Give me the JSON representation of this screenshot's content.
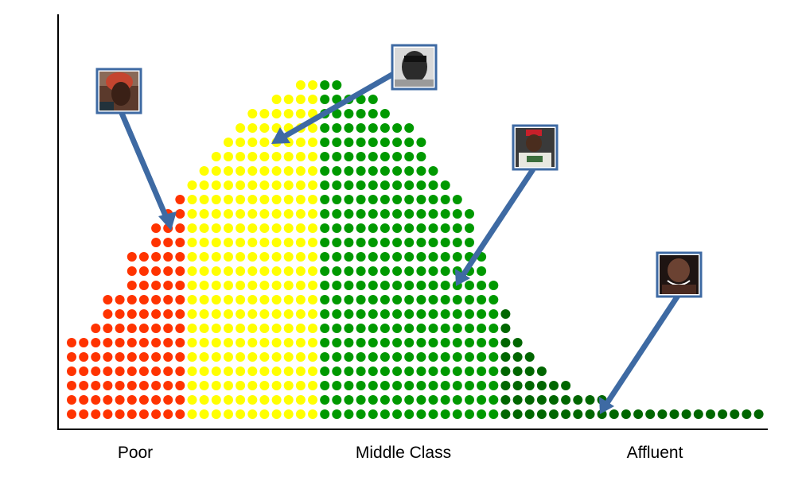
{
  "chart_data": {
    "type": "dot-histogram",
    "title": "",
    "xlabel": "",
    "ylabel": "",
    "categories": [
      "Poor",
      "Middle Class",
      "Affluent"
    ],
    "column_heights": [
      6,
      6,
      7,
      9,
      9,
      12,
      12,
      14,
      15,
      16,
      17,
      18,
      19,
      20,
      21,
      22,
      22,
      23,
      23,
      24,
      24,
      24,
      24,
      23,
      23,
      23,
      22,
      21,
      21,
      20,
      18,
      17,
      16,
      15,
      12,
      10,
      8,
      6,
      5,
      4,
      3,
      3,
      2,
      2,
      2,
      1,
      1,
      1,
      1,
      1,
      1,
      1,
      1,
      1,
      1,
      1,
      1,
      1
    ],
    "segments": [
      {
        "name": "Poor",
        "start_column": 0,
        "end_column": 10,
        "color": "#ff3300"
      },
      {
        "name": "Middle Class",
        "start_column": 10,
        "end_column": 21,
        "color": "#ffff00"
      },
      {
        "name": "Middle Class",
        "start_column": 21,
        "end_column": 36,
        "color": "#009900"
      },
      {
        "name": "Affluent",
        "start_column": 36,
        "end_column": 58,
        "color": "#006600"
      }
    ],
    "photos": [
      "portrait-1-icon",
      "portrait-2-icon",
      "portrait-3-icon",
      "portrait-4-icon"
    ],
    "arrow_color": "#3e6aa3"
  }
}
